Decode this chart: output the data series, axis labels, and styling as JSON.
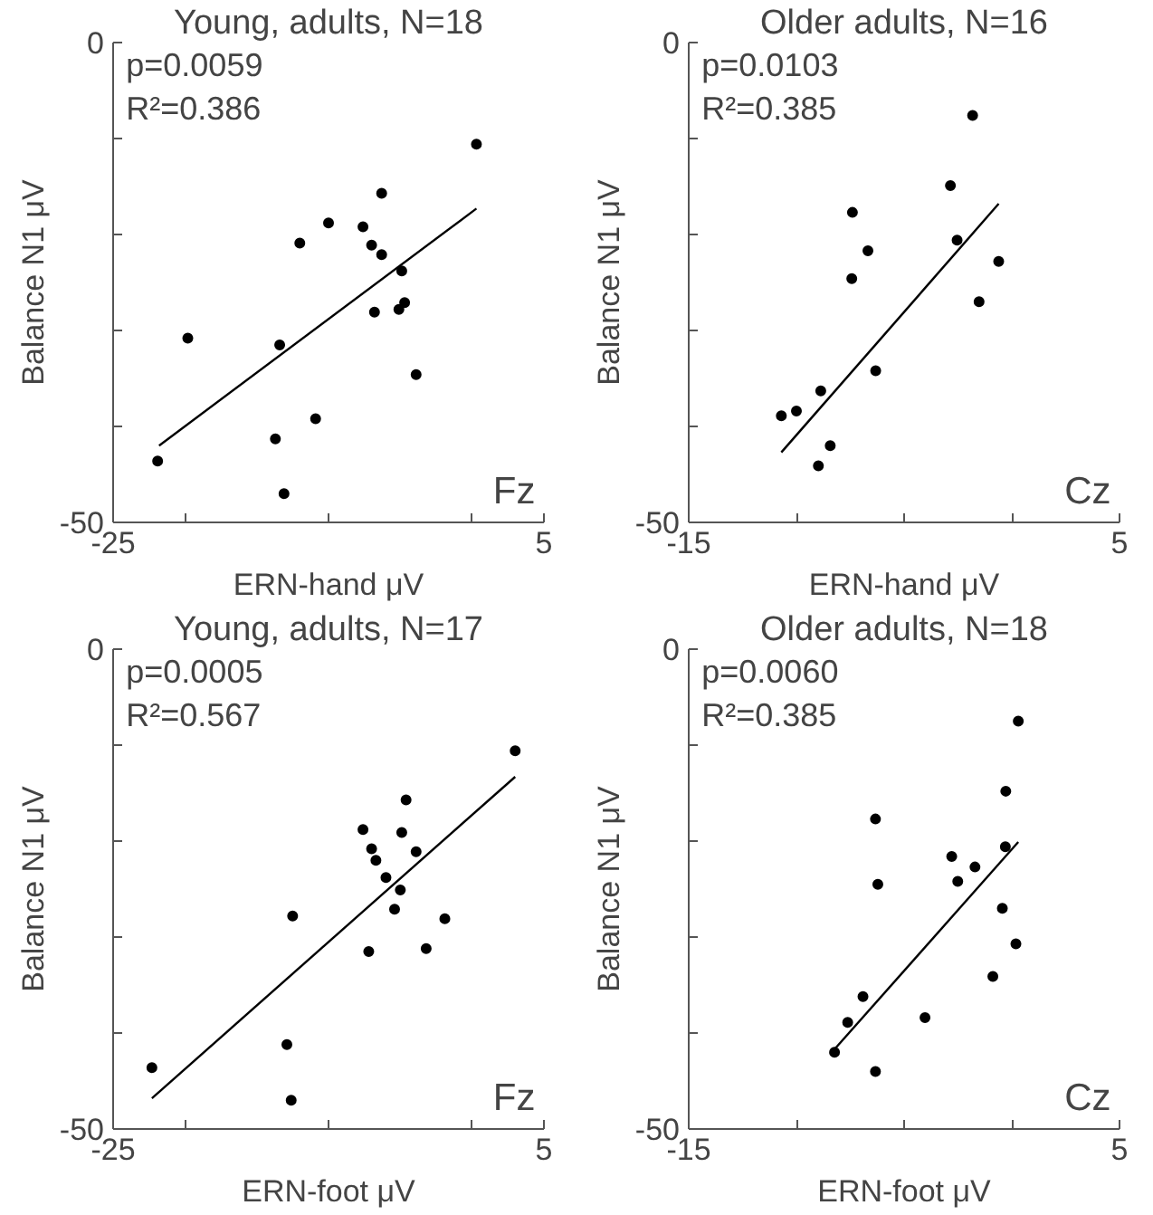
{
  "chart_data": [
    {
      "type": "scatter",
      "title": "Young, adults, N=18",
      "xlabel": "ERN-hand μV",
      "ylabel": "Balance N1 μV",
      "xlim": [
        -25,
        5
      ],
      "ylim": [
        -50,
        0
      ],
      "xticks": [
        -25,
        {
          "value": -20,
          "label": null
        },
        {
          "value": -10,
          "label": null
        },
        {
          "value": 0,
          "label": null
        },
        5
      ],
      "yticks": [
        -50,
        {
          "value": -40,
          "label": null
        },
        {
          "value": -30,
          "label": null
        },
        {
          "value": -20,
          "label": null
        },
        {
          "value": -10,
          "label": null
        },
        0
      ],
      "marker": "circle",
      "grid": false,
      "annotations": [
        "p=0.0059",
        "R²=0.386",
        "Fz"
      ],
      "series": [
        {
          "color": "#000000",
          "x": [
            -21.9,
            -19.8,
            -13.4,
            -13.7,
            -13.1,
            -12.0,
            -10.9,
            -10.0,
            -7.6,
            -7.0,
            -6.3,
            -6.3,
            -6.8,
            -4.9,
            -5.1,
            -4.7,
            -3.9,
            0.3
          ],
          "values": [
            -43.6,
            -30.8,
            -31.5,
            -41.3,
            -47.0,
            -20.9,
            -39.2,
            -18.8,
            -19.2,
            -21.1,
            -22.1,
            -15.7,
            -28.1,
            -23.8,
            -27.8,
            -27.1,
            -34.6,
            -10.6
          ]
        },
        {
          "type": "line",
          "marker": "none",
          "color": "#000000",
          "x": [
            -21.8,
            0.3
          ],
          "values": [
            -42.0,
            -17.3
          ]
        }
      ]
    },
    {
      "type": "scatter",
      "title": "Older adults, N=16",
      "xlabel": "ERN-hand μV",
      "ylabel": "Balance N1 μV",
      "xlim": [
        -15,
        5
      ],
      "ylim": [
        -50,
        0
      ],
      "xticks": [
        -15,
        {
          "value": -10,
          "label": null
        },
        {
          "value": -5,
          "label": null
        },
        {
          "value": 0,
          "label": null
        },
        5
      ],
      "yticks": [
        -50,
        {
          "value": -40,
          "label": null
        },
        {
          "value": -30,
          "label": null
        },
        {
          "value": -20,
          "label": null
        },
        {
          "value": -10,
          "label": null
        },
        0
      ],
      "marker": "circle",
      "grid": false,
      "annotations": [
        "p=0.0103",
        "R²=0.385",
        "Cz"
      ],
      "series": [
        {
          "color": "#000000",
          "x": [
            -10.7,
            -10.0,
            -8.87,
            -8.43,
            -8.98,
            -7.4,
            -6.68,
            -7.43,
            -6.32,
            -2.85,
            -2.54,
            -1.82,
            -1.52,
            -0.61
          ],
          "values": [
            -38.9,
            -38.4,
            -36.3,
            -42.0,
            -44.1,
            -17.7,
            -21.7,
            -24.6,
            -34.2,
            -14.9,
            -20.6,
            -7.6,
            -27.0,
            -22.8
          ]
        },
        {
          "type": "line",
          "marker": "none",
          "color": "#000000",
          "x": [
            -10.7,
            -0.61
          ],
          "values": [
            -42.7,
            -16.8
          ]
        }
      ]
    },
    {
      "type": "scatter",
      "title": "Young, adults, N=17",
      "xlabel": "ERN-foot μV",
      "ylabel": "Balance N1 μV",
      "xlim": [
        -25,
        5
      ],
      "ylim": [
        -50,
        0
      ],
      "xticks": [
        -25,
        {
          "value": -20,
          "label": null
        },
        {
          "value": -10,
          "label": null
        },
        {
          "value": 0,
          "label": null
        },
        5
      ],
      "yticks": [
        -50,
        {
          "value": -40,
          "label": null
        },
        {
          "value": -30,
          "label": null
        },
        {
          "value": -20,
          "label": null
        },
        {
          "value": -10,
          "label": null
        },
        0
      ],
      "marker": "circle",
      "grid": false,
      "annotations": [
        "p=0.0005",
        "R²=0.567",
        "Fz"
      ],
      "series": [
        {
          "color": "#000000",
          "x": [
            -22.3,
            -12.9,
            -12.6,
            -12.5,
            -7.6,
            -7.0,
            -6.7,
            -7.2,
            -6.0,
            -5.4,
            -5.0,
            -4.9,
            -4.6,
            -3.9,
            -3.2,
            -1.9,
            3.0
          ],
          "values": [
            -43.6,
            -41.2,
            -47.0,
            -27.8,
            -18.8,
            -20.8,
            -22.0,
            -31.5,
            -23.8,
            -27.1,
            -25.1,
            -19.1,
            -15.7,
            -21.1,
            -31.2,
            -28.1,
            -10.6
          ]
        },
        {
          "type": "line",
          "marker": "none",
          "color": "#000000",
          "x": [
            -22.3,
            3.0
          ],
          "values": [
            -46.8,
            -13.3
          ]
        }
      ]
    },
    {
      "type": "scatter",
      "title": "Older adults, N=18",
      "xlabel": "ERN-foot μV",
      "ylabel": "Balance N1 μV",
      "xlim": [
        -15,
        5
      ],
      "ylim": [
        -50,
        0
      ],
      "xticks": [
        -15,
        {
          "value": -10,
          "label": null
        },
        {
          "value": -5,
          "label": null
        },
        {
          "value": 0,
          "label": null
        },
        5
      ],
      "yticks": [
        -50,
        {
          "value": -40,
          "label": null
        },
        {
          "value": -30,
          "label": null
        },
        {
          "value": -20,
          "label": null
        },
        {
          "value": -10,
          "label": null
        },
        0
      ],
      "marker": "circle",
      "grid": false,
      "annotations": [
        "p=0.0060",
        "R²=0.385",
        "Cz"
      ],
      "series": [
        {
          "color": "#000000",
          "x": [
            -8.23,
            -7.62,
            -6.91,
            -6.33,
            -6.33,
            -6.22,
            -4.03,
            -2.79,
            -2.51,
            -1.71,
            -0.88,
            -0.44,
            -0.28,
            -0.3,
            0.19,
            0.3
          ],
          "values": [
            -42.0,
            -38.9,
            -36.2,
            -44.0,
            -17.7,
            -24.5,
            -38.4,
            -21.6,
            -24.2,
            -22.7,
            -34.1,
            -27.0,
            -14.8,
            -20.6,
            -30.7,
            -7.5
          ]
        },
        {
          "type": "line",
          "marker": "none",
          "color": "#000000",
          "x": [
            -8.43,
            0.3
          ],
          "values": [
            -42.2,
            -20.1
          ]
        }
      ]
    }
  ]
}
